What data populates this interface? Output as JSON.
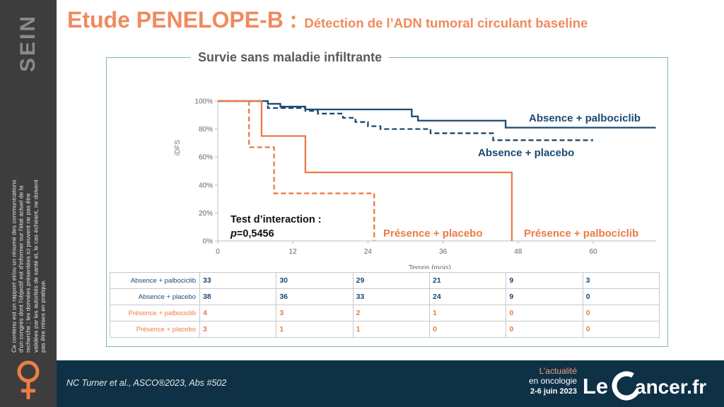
{
  "sidebar": {
    "label": "SEIN",
    "disclaimer": "Ce contenu est un rapport et/ou un résumé des communications d'un congrès dont l'objectif est d'informer sur l'état actuel de la recherche ; les données présentées ici peuvent ne pas être validées par les autorités de santé et, le cas échéant, ne doivent pas être mises en pratique."
  },
  "title": {
    "main": "Etude PENELOPE-B :",
    "sub": "Détection de l’ADN tumoral circulant baseline"
  },
  "footer": {
    "citation": "NC Turner et al., ASCO®2023, Abs #502",
    "event_line1": "L’actualité",
    "event_line2": "en oncologie",
    "event_dates": "2-6 juin 2023",
    "logo_text": "Le Cancer.fr"
  },
  "colors": {
    "blue": "#1b4a73",
    "orange": "#ec7a46",
    "title": "#f08a5d",
    "frame": "#7fb6bf",
    "footer": "#0f3146",
    "sidebar": "#3d3d3d"
  },
  "chart_data": {
    "type": "line",
    "subtype": "kaplan-meier",
    "title": "Survie sans maladie infiltrante",
    "xlabel": "Temps (mois)",
    "ylabel": "iDFS",
    "xlim": [
      0,
      70
    ],
    "ylim": [
      0,
      100
    ],
    "xticks": [
      0,
      12,
      24,
      36,
      48,
      60
    ],
    "yticks": [
      0,
      20,
      40,
      60,
      80,
      100
    ],
    "ytick_labels": [
      "0%",
      "20%",
      "40%",
      "60%",
      "80%",
      "100%"
    ],
    "grid": false,
    "annotation": {
      "line1": "Test d’interaction :",
      "line2_italic": "p",
      "line2_rest": "=0,5456"
    },
    "series": [
      {
        "name": "Absence + palbociclib",
        "color": "#1b4a73",
        "dash": false,
        "x": [
          0,
          7,
          8,
          10,
          14,
          31,
          32,
          46,
          70
        ],
        "y": [
          100,
          100,
          98,
          96,
          94,
          89,
          86,
          81,
          81
        ]
      },
      {
        "name": "Absence + placebo",
        "color": "#1b4a73",
        "dash": true,
        "x": [
          0,
          8,
          14,
          16,
          20,
          22,
          24,
          26,
          34,
          44,
          60
        ],
        "y": [
          100,
          95,
          93,
          91,
          88,
          85,
          82,
          80,
          77,
          72,
          72
        ]
      },
      {
        "name": "Présence + palbociclib",
        "color": "#ec7a46",
        "dash": false,
        "x": [
          0,
          7,
          14,
          47,
          47
        ],
        "y": [
          100,
          75,
          49,
          49,
          0
        ]
      },
      {
        "name": "Présence + placebo",
        "color": "#ec7a46",
        "dash": true,
        "x": [
          0,
          5,
          9,
          25,
          25
        ],
        "y": [
          100,
          67,
          34,
          34,
          0
        ]
      }
    ],
    "risk_table": {
      "rows": [
        {
          "label": "Absence + palbociclib",
          "color": "blue",
          "values": [
            "33",
            "30",
            "29",
            "21",
            "9",
            "3"
          ]
        },
        {
          "label": "Absence + placebo",
          "color": "blue",
          "values": [
            "38",
            "36",
            "33",
            "24",
            "9",
            "0"
          ]
        },
        {
          "label": "Présence + palbociclib",
          "color": "orange",
          "values": [
            "4",
            "3",
            "2",
            "1",
            "0",
            "0"
          ]
        },
        {
          "label": "Présence + placebo",
          "color": "orange",
          "values": [
            "3",
            "1",
            "1",
            "0",
            "0",
            "0"
          ]
        }
      ]
    }
  }
}
